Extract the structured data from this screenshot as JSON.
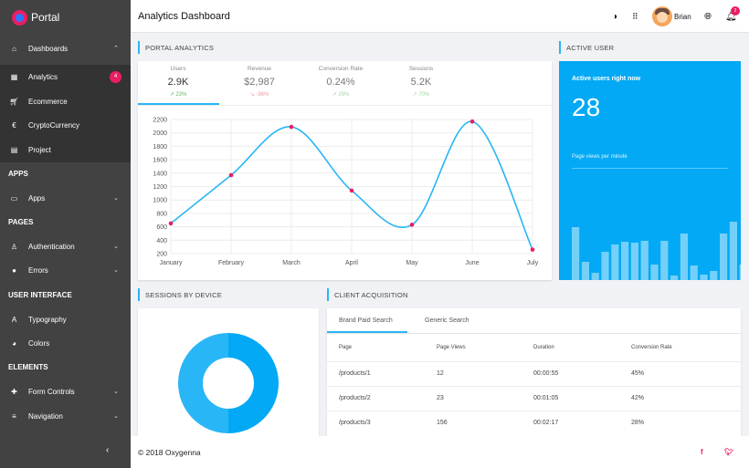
{
  "brand": "Portal",
  "topbar": {
    "title": "Analytics Dashboard",
    "user": "Brian",
    "notifications": "2"
  },
  "sidebar": {
    "dashboards": "Dashboards",
    "dash_items": [
      {
        "label": "Analytics",
        "badge": "4"
      },
      {
        "label": "Ecommerce"
      },
      {
        "label": "CryptoCurrency"
      },
      {
        "label": "Project"
      }
    ],
    "apps_section": "APPS",
    "apps": "Apps",
    "pages_section": "PAGES",
    "authentication": "Authentication",
    "errors": "Errors",
    "ui_section": "USER INTERFACE",
    "typography": "Typography",
    "colors": "Colors",
    "elements_section": "ELEMENTS",
    "form_controls": "Form Controls",
    "navigation": "Navigation"
  },
  "portal_analytics": {
    "title": "PORTAL ANALYTICS",
    "kpis": [
      {
        "label": "Users",
        "value": "2.9K",
        "trend": "23%"
      },
      {
        "label": "Revenue",
        "value": "$2,987",
        "trend": "-96%"
      },
      {
        "label": "Conversion Rate",
        "value": "0.24%",
        "trend": "29%"
      },
      {
        "label": "Sessions",
        "value": "5.2K",
        "trend": "70%"
      }
    ]
  },
  "chart_data": {
    "type": "line",
    "categories": [
      "January",
      "February",
      "March",
      "April",
      "May",
      "June",
      "July"
    ],
    "values": [
      650,
      1370,
      2090,
      1140,
      630,
      2170,
      260
    ],
    "ylim": [
      200,
      2200
    ],
    "yticks": [
      "2200",
      "2000",
      "1800",
      "1600",
      "1400",
      "1200",
      "1000",
      "800",
      "600",
      "400",
      "200"
    ],
    "line_color": "#29b6f6",
    "point_color": "#e91e63",
    "grid": true
  },
  "active_user": {
    "title": "ACTIVE USER",
    "heading": "Active users right now",
    "count": "28",
    "subheading": "Page views per minute",
    "bars": [
      58,
      20,
      8,
      31,
      39,
      42,
      41,
      43,
      17,
      43,
      5,
      51,
      16,
      6,
      10,
      51,
      64,
      17
    ]
  },
  "sessions": {
    "title": "SESSIONS BY DEVICE",
    "segments": [
      50,
      50
    ],
    "colors": [
      "#03a9f4",
      "#29b6f6"
    ]
  },
  "acquisition": {
    "title": "CLIENT ACQUISITION",
    "tabs": [
      "Brand Paid Search",
      "Generic Search"
    ],
    "columns": [
      "Page",
      "Page Views",
      "Duration",
      "Conversion Rate"
    ],
    "rows": [
      [
        "/products/1",
        "12",
        "00:00:55",
        "45%"
      ],
      [
        "/products/2",
        "23",
        "00:01:05",
        "42%"
      ],
      [
        "/products/3",
        "156",
        "00:02:17",
        "28%"
      ]
    ]
  },
  "footer": {
    "copyright": "© 2018 Oxygenna"
  }
}
